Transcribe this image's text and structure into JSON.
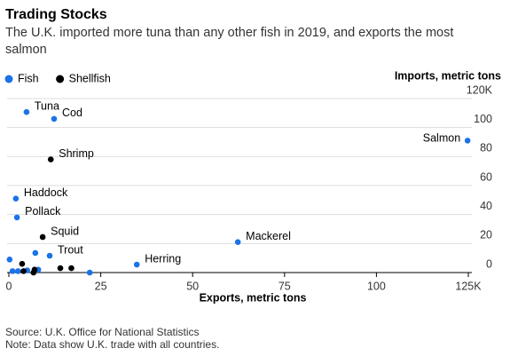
{
  "chart_data": {
    "type": "scatter",
    "title": "Trading Stocks",
    "subtitle": [
      "The U.K. imported more tuna than any other fish in 2019, and exports the most",
      "salmon"
    ],
    "xlabel": "Exports, metric tons",
    "ylabel": "Imports, metric tons",
    "source": "Source: U.K. Office for National Statistics",
    "note": "Note: Data show U.K. trade with all countries.",
    "xlim": [
      0,
      125
    ],
    "ylim": [
      0,
      120
    ],
    "xticks": [
      0,
      25,
      50,
      75,
      100,
      {
        "value": 125,
        "label": "125K"
      }
    ],
    "yticks": [
      0,
      20,
      40,
      60,
      80,
      100,
      {
        "value": 120,
        "label": "120K"
      }
    ],
    "grid": true,
    "series": [
      {
        "name": "Fish",
        "color": "#1a73e8",
        "x": [
          4.8,
          12.3,
          124.8,
          1.9,
          2.2,
          62.3,
          34.8,
          11.1,
          7.2,
          0.2,
          1,
          2.5,
          5,
          8,
          22
        ],
        "values": [
          110.7,
          106,
          91,
          51,
          38,
          21,
          5.5,
          11.6,
          13.5,
          9,
          1,
          1,
          1.5,
          2,
          0
        ],
        "labels": [
          "Tuna",
          "Cod",
          "Salmon",
          "Haddock",
          "Pollack",
          "Mackerel",
          "Herring",
          "Trout",
          null,
          null,
          null,
          null,
          null,
          null,
          null
        ]
      },
      {
        "name": "Shellfish",
        "color": "#000000",
        "x": [
          11.4,
          9.2,
          3.6,
          4,
          7,
          14,
          17,
          6.7
        ],
        "values": [
          78,
          24.5,
          6,
          1,
          2,
          3,
          3,
          0
        ],
        "labels": [
          "Shrimp",
          "Squid",
          null,
          null,
          null,
          null,
          null,
          null
        ]
      }
    ]
  }
}
